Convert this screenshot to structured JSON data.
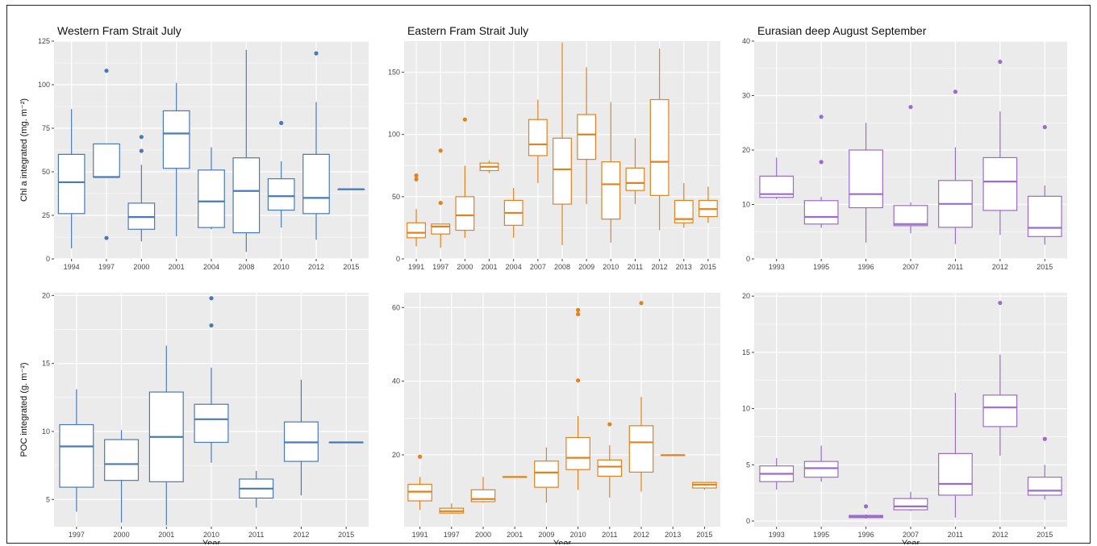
{
  "figure": {
    "xlabel": "Year",
    "colors": {
      "western": "#4a7ab5",
      "eastern": "#e0821f",
      "eurasian": "#9b6cc9",
      "panel_bg": "#ebebeb",
      "grid": "#ffffff"
    }
  },
  "chart_data": [
    {
      "type": "box",
      "title": "Western Fram Strait July",
      "xlabel": "",
      "ylabel": "Chl a integrated (mg. m⁻²)",
      "ylim": [
        0,
        125
      ],
      "yticks": [
        0,
        25,
        50,
        75,
        100,
        125
      ],
      "color": "#4a7ab5",
      "categories": [
        "1994",
        "1997",
        "2000",
        "2001",
        "2004",
        "2008",
        "2010",
        "2012",
        "2015"
      ],
      "boxes": [
        {
          "x": "1994",
          "min": 6,
          "q1": 26,
          "median": 44,
          "q3": 60,
          "max": 86,
          "outliers": []
        },
        {
          "x": "1997",
          "min": 47,
          "q1": 47,
          "median": 47,
          "q3": 66,
          "max": 66,
          "outliers": [
            108,
            12
          ]
        },
        {
          "x": "2000",
          "min": 10,
          "q1": 17,
          "median": 24,
          "q3": 32,
          "max": 54,
          "outliers": [
            70,
            62
          ]
        },
        {
          "x": "2001",
          "min": 13,
          "q1": 52,
          "median": 72,
          "q3": 85,
          "max": 101,
          "outliers": []
        },
        {
          "x": "2004",
          "min": 17,
          "q1": 18,
          "median": 33,
          "q3": 51,
          "max": 64,
          "outliers": []
        },
        {
          "x": "2008",
          "min": 4,
          "q1": 15,
          "median": 39,
          "q3": 58,
          "max": 120,
          "outliers": []
        },
        {
          "x": "2010",
          "min": 18,
          "q1": 28,
          "median": 36,
          "q3": 46,
          "max": 56,
          "outliers": [
            78
          ]
        },
        {
          "x": "2012",
          "min": 11,
          "q1": 26,
          "median": 35,
          "q3": 60,
          "max": 90,
          "outliers": [
            118
          ]
        },
        {
          "x": "2015",
          "min": 40,
          "q1": 40,
          "median": 40,
          "q3": 40,
          "max": 40,
          "outliers": []
        }
      ]
    },
    {
      "type": "box",
      "title": "Eastern Fram Strait July",
      "xlabel": "",
      "ylabel": "",
      "ylim": [
        0,
        175
      ],
      "yticks": [
        0,
        50,
        100,
        150
      ],
      "color": "#e0821f",
      "categories": [
        "1991",
        "1997",
        "2000",
        "2001",
        "2004",
        "2007",
        "2008",
        "2009",
        "2010",
        "2011",
        "2012",
        "2013",
        "2015"
      ],
      "boxes": [
        {
          "x": "1991",
          "min": 10,
          "q1": 17,
          "median": 21,
          "q3": 29,
          "max": 40,
          "outliers": [
            67,
            64
          ]
        },
        {
          "x": "1997",
          "min": 9,
          "q1": 20,
          "median": 26,
          "q3": 28,
          "max": 28,
          "outliers": [
            87,
            45
          ]
        },
        {
          "x": "2000",
          "min": 17,
          "q1": 23,
          "median": 35,
          "q3": 50,
          "max": 75,
          "outliers": [
            112
          ]
        },
        {
          "x": "2001",
          "min": 69,
          "q1": 71,
          "median": 74,
          "q3": 77,
          "max": 79,
          "outliers": []
        },
        {
          "x": "2004",
          "min": 17,
          "q1": 27,
          "median": 37,
          "q3": 47,
          "max": 57,
          "outliers": []
        },
        {
          "x": "2007",
          "min": 61,
          "q1": 83,
          "median": 92,
          "q3": 112,
          "max": 128,
          "outliers": []
        },
        {
          "x": "2008",
          "min": 11,
          "q1": 44,
          "median": 72,
          "q3": 97,
          "max": 174,
          "outliers": []
        },
        {
          "x": "2009",
          "min": 44,
          "q1": 80,
          "median": 100,
          "q3": 116,
          "max": 154,
          "outliers": []
        },
        {
          "x": "2010",
          "min": 13,
          "q1": 32,
          "median": 60,
          "q3": 78,
          "max": 126,
          "outliers": []
        },
        {
          "x": "2011",
          "min": 44,
          "q1": 55,
          "median": 61,
          "q3": 73,
          "max": 97,
          "outliers": []
        },
        {
          "x": "2012",
          "min": 23,
          "q1": 51,
          "median": 78,
          "q3": 128,
          "max": 169,
          "outliers": []
        },
        {
          "x": "2013",
          "min": 25,
          "q1": 29,
          "median": 32,
          "q3": 47,
          "max": 61,
          "outliers": []
        },
        {
          "x": "2015",
          "min": 29,
          "q1": 34,
          "median": 40,
          "q3": 47,
          "max": 58,
          "outliers": []
        }
      ]
    },
    {
      "type": "box",
      "title": "Eurasian deep August September",
      "xlabel": "",
      "ylabel": "",
      "ylim": [
        0,
        40
      ],
      "yticks": [
        0,
        10,
        20,
        30,
        40
      ],
      "color": "#9b6cc9",
      "categories": [
        "1993",
        "1995",
        "1996",
        "2007",
        "2011",
        "2012",
        "2015"
      ],
      "boxes": [
        {
          "x": "1993",
          "min": 11,
          "q1": 11.3,
          "median": 11.9,
          "q3": 15.2,
          "max": 18.6,
          "outliers": []
        },
        {
          "x": "1995",
          "min": 5.7,
          "q1": 6.4,
          "median": 7.7,
          "q3": 10.7,
          "max": 11.4,
          "outliers": [
            26.1,
            17.8
          ]
        },
        {
          "x": "1996",
          "min": 3,
          "q1": 9.4,
          "median": 11.9,
          "q3": 20,
          "max": 25,
          "outliers": []
        },
        {
          "x": "2007",
          "min": 4.7,
          "q1": 6.1,
          "median": 6.4,
          "q3": 9.8,
          "max": 10.4,
          "outliers": [
            27.9
          ]
        },
        {
          "x": "2011",
          "min": 2.7,
          "q1": 5.8,
          "median": 10.1,
          "q3": 14.4,
          "max": 20.5,
          "outliers": [
            30.7
          ]
        },
        {
          "x": "2012",
          "min": 4.4,
          "q1": 8.9,
          "median": 14.2,
          "q3": 18.6,
          "max": 27.1,
          "outliers": [
            36.2
          ]
        },
        {
          "x": "2015",
          "min": 2.6,
          "q1": 4.1,
          "median": 5.7,
          "q3": 11.5,
          "max": 13.5,
          "outliers": [
            24.2
          ]
        }
      ]
    },
    {
      "type": "box",
      "title": "",
      "xlabel": "Year",
      "ylabel": "POC integrated (g. m⁻²)",
      "ylim": [
        3,
        20.2
      ],
      "yticks": [
        5,
        10,
        15,
        20
      ],
      "color": "#4a7ab5",
      "categories": [
        "1997",
        "2000",
        "2001",
        "2010",
        "2011",
        "2012",
        "2015"
      ],
      "boxes": [
        {
          "x": "1997",
          "min": 4.1,
          "q1": 5.9,
          "median": 8.9,
          "q3": 10.5,
          "max": 13.1,
          "outliers": []
        },
        {
          "x": "2000",
          "min": 3.3,
          "q1": 6.4,
          "median": 7.6,
          "q3": 9.4,
          "max": 10.1,
          "outliers": []
        },
        {
          "x": "2001",
          "min": 3.1,
          "q1": 6.3,
          "median": 9.6,
          "q3": 12.9,
          "max": 16.3,
          "outliers": []
        },
        {
          "x": "2010",
          "min": 7.7,
          "q1": 9.2,
          "median": 10.9,
          "q3": 12.0,
          "max": 14.7,
          "outliers": [
            19.8,
            17.8
          ]
        },
        {
          "x": "2011",
          "min": 4.4,
          "q1": 5.1,
          "median": 5.8,
          "q3": 6.5,
          "max": 7.1,
          "outliers": []
        },
        {
          "x": "2012",
          "min": 5.3,
          "q1": 7.8,
          "median": 9.2,
          "q3": 10.7,
          "max": 13.8,
          "outliers": []
        },
        {
          "x": "2015",
          "min": 9.2,
          "q1": 9.2,
          "median": 9.2,
          "q3": 9.2,
          "max": 9.2,
          "outliers": []
        }
      ]
    },
    {
      "type": "box",
      "title": "",
      "xlabel": "Year",
      "ylabel": "",
      "ylim": [
        0.5,
        64
      ],
      "yticks": [
        20,
        40,
        60
      ],
      "color": "#e0821f",
      "categories": [
        "1991",
        "1997",
        "2000",
        "2001",
        "2009",
        "2010",
        "2011",
        "2012",
        "2013",
        "2015"
      ],
      "boxes": [
        {
          "x": "1991",
          "min": 5,
          "q1": 7.5,
          "median": 10,
          "q3": 12,
          "max": 14,
          "outliers": [
            19.5
          ]
        },
        {
          "x": "1997",
          "min": 4,
          "q1": 4.2,
          "median": 4.7,
          "q3": 5.5,
          "max": 6.8,
          "outliers": []
        },
        {
          "x": "2000",
          "min": 7,
          "q1": 7.3,
          "median": 8,
          "q3": 10.5,
          "max": 14,
          "outliers": []
        },
        {
          "x": "2001",
          "min": 14,
          "q1": 14,
          "median": 14,
          "q3": 14,
          "max": 14,
          "outliers": []
        },
        {
          "x": "2009",
          "min": 7,
          "q1": 11.2,
          "median": 15.2,
          "q3": 18.3,
          "max": 22,
          "outliers": []
        },
        {
          "x": "2010",
          "min": 10.5,
          "q1": 16,
          "median": 19.2,
          "q3": 24.7,
          "max": 30.5,
          "outliers": [
            59.3,
            58.2,
            40.2
          ]
        },
        {
          "x": "2011",
          "min": 8.4,
          "q1": 14.2,
          "median": 16.8,
          "q3": 18.6,
          "max": 22.6,
          "outliers": [
            28.3
          ]
        },
        {
          "x": "2012",
          "min": 10,
          "q1": 15.3,
          "median": 23.4,
          "q3": 27.9,
          "max": 35.7,
          "outliers": [
            61.2
          ]
        },
        {
          "x": "2013",
          "min": 19.9,
          "q1": 19.9,
          "median": 19.9,
          "q3": 19.9,
          "max": 19.9,
          "outliers": []
        },
        {
          "x": "2015",
          "min": 10.5,
          "q1": 11,
          "median": 11.9,
          "q3": 12.5,
          "max": 12.5,
          "outliers": []
        }
      ]
    },
    {
      "type": "box",
      "title": "",
      "xlabel": "Year",
      "ylabel": "",
      "ylim": [
        -0.5,
        20.3
      ],
      "yticks": [
        0,
        5,
        10,
        15,
        20
      ],
      "color": "#9b6cc9",
      "categories": [
        "1993",
        "1995",
        "1996",
        "2007",
        "2011",
        "2012",
        "2015"
      ],
      "boxes": [
        {
          "x": "1993",
          "min": 2.8,
          "q1": 3.5,
          "median": 4.2,
          "q3": 4.9,
          "max": 5.6,
          "outliers": []
        },
        {
          "x": "1995",
          "min": 3.5,
          "q1": 3.9,
          "median": 4.7,
          "q3": 5.3,
          "max": 6.7,
          "outliers": []
        },
        {
          "x": "1996",
          "min": 0.2,
          "q1": 0.3,
          "median": 0.4,
          "q3": 0.5,
          "max": 0.6,
          "outliers": [
            1.3
          ]
        },
        {
          "x": "2007",
          "min": 0.9,
          "q1": 1.0,
          "median": 1.3,
          "q3": 2.0,
          "max": 2.6,
          "outliers": []
        },
        {
          "x": "2011",
          "min": 0.3,
          "q1": 2.3,
          "median": 3.3,
          "q3": 6.0,
          "max": 11.4,
          "outliers": []
        },
        {
          "x": "2012",
          "min": 5.8,
          "q1": 8.4,
          "median": 10.1,
          "q3": 11.2,
          "max": 14.8,
          "outliers": [
            19.4
          ]
        },
        {
          "x": "2015",
          "min": 1.9,
          "q1": 2.3,
          "median": 2.7,
          "q3": 3.9,
          "max": 5.0,
          "outliers": [
            7.3
          ]
        }
      ]
    }
  ]
}
